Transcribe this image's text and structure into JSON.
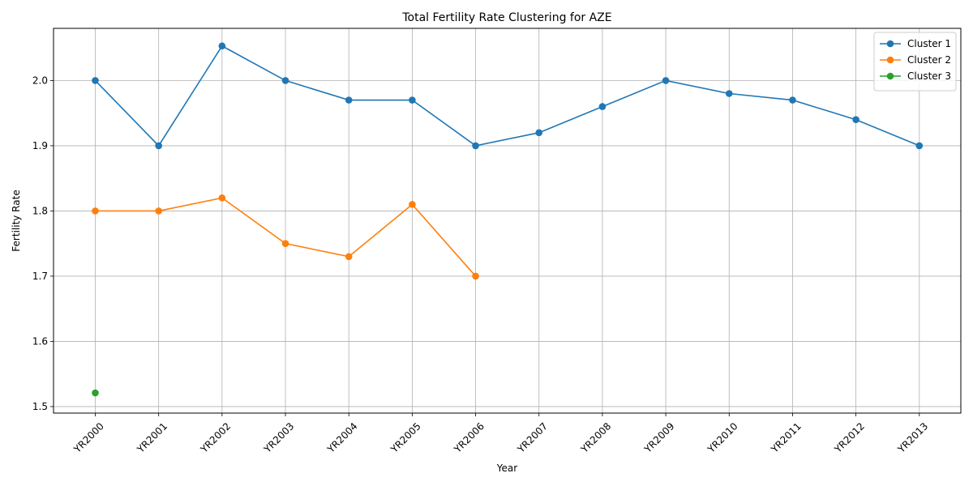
{
  "chart_data": {
    "type": "line",
    "title": "Total Fertility Rate Clustering for AZE",
    "xlabel": "Year",
    "ylabel": "Fertility Rate",
    "categories": [
      "YR2000",
      "YR2001",
      "YR2002",
      "YR2003",
      "YR2004",
      "YR2005",
      "YR2006",
      "YR2007",
      "YR2008",
      "YR2009",
      "YR2010",
      "YR2011",
      "YR2012",
      "YR2013"
    ],
    "ylim": [
      1.49,
      2.08
    ],
    "yticks": [
      1.5,
      1.6,
      1.7,
      1.8,
      1.9,
      2.0
    ],
    "ytick_labels": [
      "1.5",
      "1.6",
      "1.7",
      "1.8",
      "1.9",
      "2.0"
    ],
    "grid": true,
    "legend_position": "top-right",
    "series": [
      {
        "name": "Cluster 1",
        "color": "#1f77b4",
        "values": [
          2.0,
          1.9,
          2.053,
          2.0,
          1.97,
          1.97,
          1.9,
          1.92,
          1.96,
          2.0,
          1.98,
          1.97,
          1.94,
          1.9
        ]
      },
      {
        "name": "Cluster 2",
        "color": "#ff7f0e",
        "values": [
          1.8,
          1.8,
          1.82,
          1.75,
          1.73,
          1.81,
          1.7,
          null,
          null,
          null,
          null,
          null,
          null,
          null
        ]
      },
      {
        "name": "Cluster 3",
        "color": "#2ca02c",
        "values": [
          1.521,
          null,
          null,
          null,
          null,
          null,
          null,
          null,
          null,
          null,
          null,
          null,
          null,
          null
        ]
      }
    ]
  }
}
